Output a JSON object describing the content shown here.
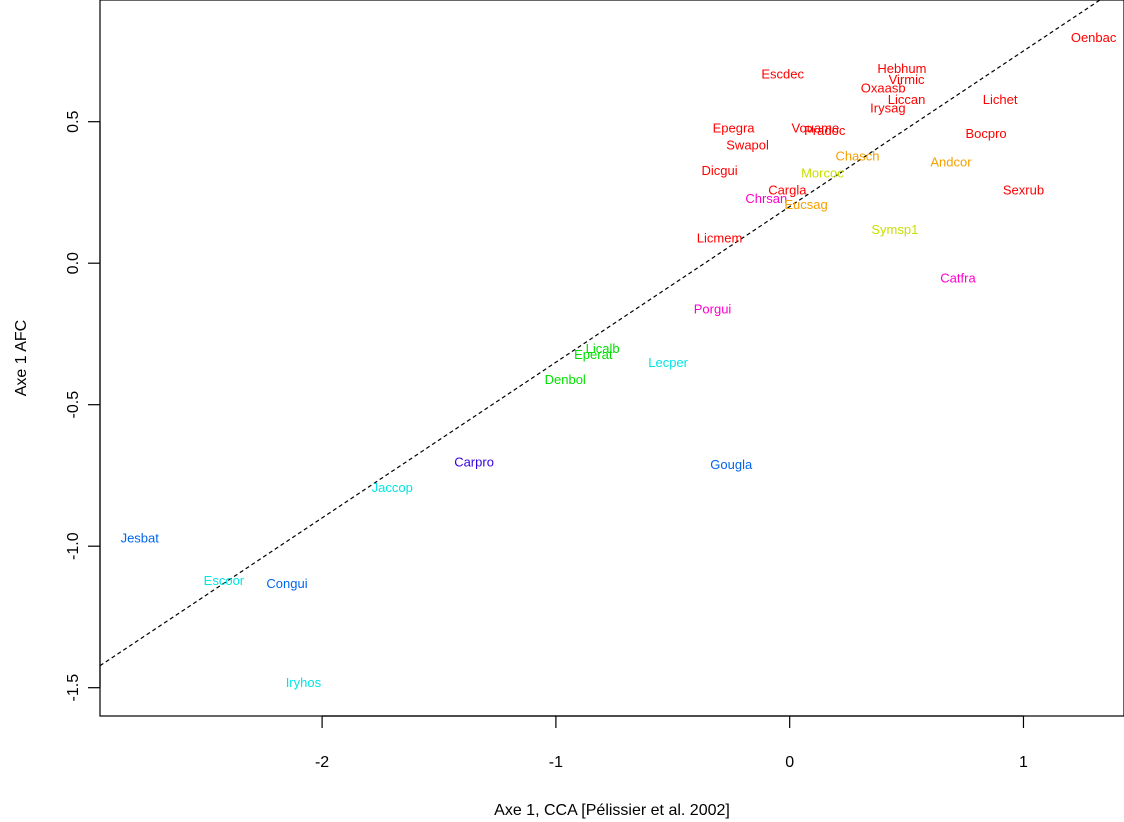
{
  "chart_data": {
    "type": "scatter",
    "xlabel": "Axe 1, CCA [Pélissier et al. 2002]",
    "ylabel": "Axe 1 AFC",
    "xlim": [
      -2.95,
      1.43
    ],
    "ylim": [
      -1.6,
      0.93
    ],
    "x_ticks": [
      -2,
      -1,
      0,
      1
    ],
    "x_tick_labels": [
      "-2",
      "-1",
      "0",
      "1"
    ],
    "y_ticks": [
      -1.5,
      -1.0,
      -0.5,
      0.0,
      0.5
    ],
    "y_tick_labels": [
      "-1.5",
      "-1.0",
      "-0.5",
      "0.0",
      "0.5"
    ],
    "reference_line": {
      "style": "dashed",
      "intercept": 0.2,
      "slope": 0.55
    },
    "points": [
      {
        "label": "Oenbac",
        "x": 1.3,
        "y": 0.8,
        "color": "#ff0000"
      },
      {
        "label": "Escdec",
        "x": -0.03,
        "y": 0.67,
        "color": "#ff0000"
      },
      {
        "label": "Hebhum",
        "x": 0.48,
        "y": 0.69,
        "color": "#ff0000"
      },
      {
        "label": "Virmic",
        "x": 0.5,
        "y": 0.65,
        "color": "#ff0000"
      },
      {
        "label": "Oxaasb",
        "x": 0.4,
        "y": 0.62,
        "color": "#ff0000"
      },
      {
        "label": "Liccan",
        "x": 0.5,
        "y": 0.58,
        "color": "#ff0000"
      },
      {
        "label": "Irysag",
        "x": 0.42,
        "y": 0.55,
        "color": "#ff0000"
      },
      {
        "label": "Lichet",
        "x": 0.9,
        "y": 0.58,
        "color": "#ff0000"
      },
      {
        "label": "Bocpro",
        "x": 0.84,
        "y": 0.46,
        "color": "#ff0000"
      },
      {
        "label": "Epegra",
        "x": -0.24,
        "y": 0.48,
        "color": "#ff0000"
      },
      {
        "label": "Vouame",
        "x": 0.11,
        "y": 0.48,
        "color": "#ff0000"
      },
      {
        "label": "Pradoc",
        "x": 0.15,
        "y": 0.47,
        "color": "#ff0000"
      },
      {
        "label": "Swapol",
        "x": -0.18,
        "y": 0.42,
        "color": "#ff0000"
      },
      {
        "label": "Chasch",
        "x": 0.29,
        "y": 0.38,
        "color": "#f5a000"
      },
      {
        "label": "Andcor",
        "x": 0.69,
        "y": 0.36,
        "color": "#f5a000"
      },
      {
        "label": "Dicgui",
        "x": -0.3,
        "y": 0.33,
        "color": "#ff0000"
      },
      {
        "label": "Morcoc",
        "x": 0.14,
        "y": 0.32,
        "color": "#c8e000"
      },
      {
        "label": "Cargla",
        "x": -0.01,
        "y": 0.26,
        "color": "#ff0000"
      },
      {
        "label": "Sexrub",
        "x": 1.0,
        "y": 0.26,
        "color": "#ff0000"
      },
      {
        "label": "Chrsan",
        "x": -0.1,
        "y": 0.23,
        "color": "#ff00cc"
      },
      {
        "label": "Eucsag",
        "x": 0.07,
        "y": 0.21,
        "color": "#f5a000"
      },
      {
        "label": "Symsp1",
        "x": 0.45,
        "y": 0.12,
        "color": "#c8e000"
      },
      {
        "label": "Licmem",
        "x": -0.3,
        "y": 0.09,
        "color": "#ff0000"
      },
      {
        "label": "Catfra",
        "x": 0.72,
        "y": -0.05,
        "color": "#ff00cc"
      },
      {
        "label": "Porgui",
        "x": -0.33,
        "y": -0.16,
        "color": "#ff00cc"
      },
      {
        "label": "Licalb",
        "x": -0.8,
        "y": -0.3,
        "color": "#00e000"
      },
      {
        "label": "Eperat",
        "x": -0.84,
        "y": -0.32,
        "color": "#00e000"
      },
      {
        "label": "Lecper",
        "x": -0.52,
        "y": -0.35,
        "color": "#00e5e5"
      },
      {
        "label": "Denbol",
        "x": -0.96,
        "y": -0.41,
        "color": "#00e000"
      },
      {
        "label": "Carpro",
        "x": -1.35,
        "y": -0.7,
        "color": "#3300dd"
      },
      {
        "label": "Gougla",
        "x": -0.25,
        "y": -0.71,
        "color": "#0066ee"
      },
      {
        "label": "Jaccop",
        "x": -1.7,
        "y": -0.79,
        "color": "#00e5e5"
      },
      {
        "label": "Jesbat",
        "x": -2.78,
        "y": -0.97,
        "color": "#0066ee"
      },
      {
        "label": "Escoor",
        "x": -2.42,
        "y": -1.12,
        "color": "#00e5e5"
      },
      {
        "label": "Congui",
        "x": -2.15,
        "y": -1.13,
        "color": "#0066ee"
      },
      {
        "label": "Iryhos",
        "x": -2.08,
        "y": -1.48,
        "color": "#00e5e5"
      }
    ]
  }
}
